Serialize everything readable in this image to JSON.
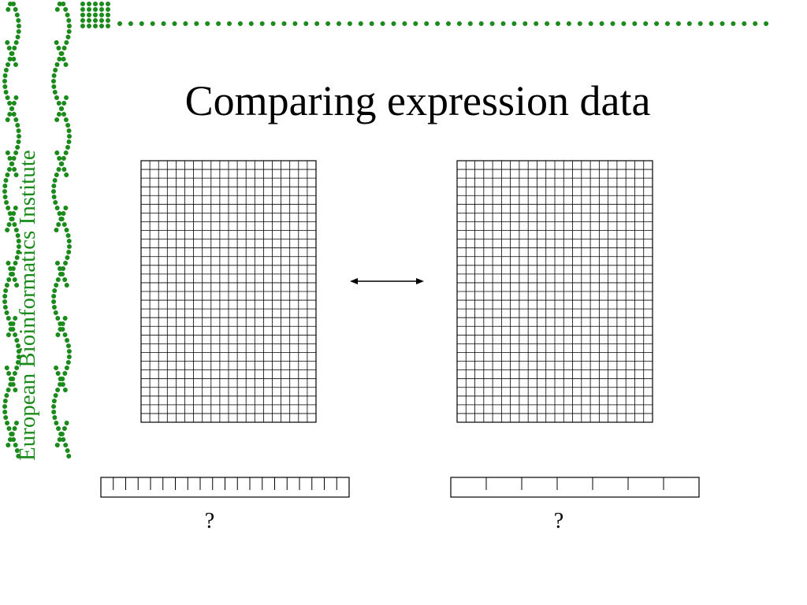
{
  "slide": {
    "sidebar": "European Bioinformatics Institute",
    "title": "Comparing expression data",
    "left_label": "?",
    "right_label": "?"
  }
}
